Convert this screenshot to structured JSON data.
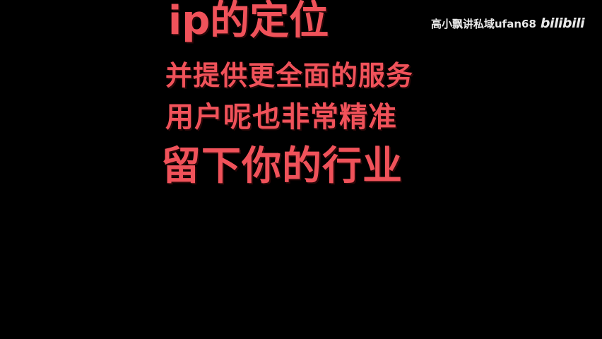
{
  "captions": {
    "line_1": "ip的定位",
    "line_2": "并提供更全面的服务",
    "line_3": "用户呢也非常精准",
    "line_4": "留下你的行业"
  },
  "watermark": {
    "text": "高小飘讲私域ufan68",
    "logo": "bilibili"
  },
  "colors": {
    "background": "#000000",
    "caption": "#f0525a",
    "watermark": "#e9e9e9"
  }
}
